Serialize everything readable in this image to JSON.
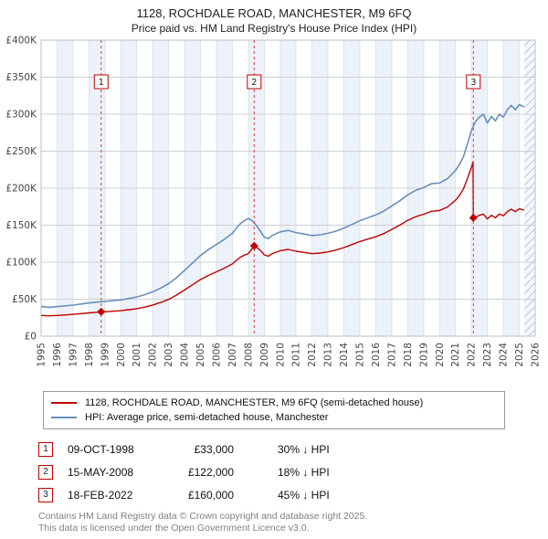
{
  "title": "1128, ROCHDALE ROAD, MANCHESTER, M9 6FQ",
  "subtitle": "Price paid vs. HM Land Registry's House Price Index (HPI)",
  "transactions": [
    {
      "num": "1",
      "date": "09-OCT-1998",
      "price": "£33,000",
      "hpi": "30% ↓ HPI"
    },
    {
      "num": "2",
      "date": "15-MAY-2008",
      "price": "£122,000",
      "hpi": "18% ↓ HPI"
    },
    {
      "num": "3",
      "date": "18-FEB-2022",
      "price": "£160,000",
      "hpi": "45% ↓ HPI"
    }
  ],
  "footer": {
    "line1": "Contains HM Land Registry data © Crown copyright and database right 2025.",
    "line2": "This data is licensed under the Open Government Licence v3.0."
  },
  "chart_data": {
    "type": "line",
    "title": "1128, ROCHDALE ROAD, MANCHESTER, M9 6FQ",
    "subtitle": "Price paid vs. HM Land Registry's House Price Index (HPI)",
    "xlabel": "",
    "ylabel": "",
    "xlim": [
      1995,
      2026
    ],
    "ylim": [
      0,
      400
    ],
    "y_units": "GBP thousands",
    "y_step": 50,
    "y_ticks": [
      "£0",
      "£50K",
      "£100K",
      "£150K",
      "£200K",
      "£250K",
      "£300K",
      "£350K",
      "£400K"
    ],
    "x_ticks": [
      1995,
      1996,
      1997,
      1998,
      1999,
      2000,
      2001,
      2002,
      2003,
      2004,
      2005,
      2006,
      2007,
      2008,
      2009,
      2010,
      2011,
      2012,
      2013,
      2014,
      2015,
      2016,
      2017,
      2018,
      2019,
      2020,
      2021,
      2022,
      2023,
      2024,
      2025,
      2026
    ],
    "grid": "on",
    "legend_position": "bottom",
    "hatch_start": 2025.33,
    "colors": {
      "band": "#edf2f9",
      "grid_v": "#dde3ec",
      "grid_h": "#d0d0d0",
      "frame": "#bfbfbf",
      "sale_line": "#cc4444",
      "hatch": "#b9c9de"
    },
    "series": [
      {
        "name": "price-paid",
        "label": "1128, ROCHDALE ROAD, MANCHESTER, M9 6FQ (semi-detached house)",
        "color": "#c00000",
        "width": 1.4,
        "x": [
          1995,
          1995.5,
          1996,
          1996.5,
          1997,
          1997.5,
          1998,
          1998.5,
          1998.77,
          1999,
          1999.5,
          2000,
          2000.5,
          2001,
          2001.5,
          2002,
          2002.5,
          2003,
          2003.5,
          2004,
          2004.5,
          2005,
          2005.5,
          2006,
          2006.5,
          2007,
          2007.25,
          2007.5,
          2007.75,
          2008,
          2008.37,
          2008.6,
          2008.85,
          2009,
          2009.25,
          2009.5,
          2010,
          2010.5,
          2011,
          2011.5,
          2012,
          2012.5,
          2013,
          2013.5,
          2014,
          2014.5,
          2015,
          2015.5,
          2016,
          2016.5,
          2017,
          2017.5,
          2018,
          2018.5,
          2019,
          2019.5,
          2020,
          2020.5,
          2021,
          2021.25,
          2021.5,
          2021.75,
          2022,
          2022.1,
          2022.12,
          2022.25,
          2022.5,
          2022.75,
          2023,
          2023.25,
          2023.5,
          2023.75,
          2024,
          2024.25,
          2024.5,
          2024.75,
          2025,
          2025.3
        ],
        "y_k": [
          28,
          27.5,
          28,
          28.7,
          29.5,
          30.5,
          31.5,
          32.3,
          33,
          33,
          33.7,
          34.4,
          35.8,
          37.2,
          39.3,
          42.1,
          45.6,
          49.8,
          55.5,
          62.5,
          69.5,
          76.5,
          82.1,
          87,
          92,
          97.6,
          102.5,
          106.7,
          109.5,
          111.6,
          122,
          119,
          114,
          109.9,
          108.2,
          111.5,
          115.6,
          117.3,
          114.8,
          113.2,
          111.5,
          112.3,
          114,
          116.4,
          119.7,
          123.8,
          127.9,
          131.2,
          134.5,
          138.6,
          144.3,
          150.1,
          156.6,
          161.5,
          164.8,
          168.9,
          169.7,
          174.7,
          183.7,
          190.2,
          199.3,
          213.2,
          228,
          235.3,
          160,
          160.6,
          163.3,
          165,
          158.4,
          163.4,
          160.1,
          165,
          162.8,
          168.3,
          171.6,
          168.3,
          172.1,
          170.5
        ]
      },
      {
        "name": "hpi",
        "label": "HPI: Average price, semi-detached house, Manchester",
        "color": "#6890ba",
        "width": 1.6,
        "x": [
          1995,
          1995.5,
          1996,
          1996.5,
          1997,
          1997.5,
          1998,
          1998.5,
          1999,
          1999.5,
          2000,
          2000.5,
          2001,
          2001.5,
          2002,
          2002.5,
          2003,
          2003.5,
          2004,
          2004.5,
          2005,
          2005.5,
          2006,
          2006.5,
          2007,
          2007.25,
          2007.5,
          2007.75,
          2008,
          2008.25,
          2008.5,
          2008.75,
          2009,
          2009.25,
          2009.5,
          2010,
          2010.5,
          2011,
          2011.5,
          2012,
          2012.5,
          2013,
          2013.5,
          2014,
          2014.5,
          2015,
          2015.5,
          2016,
          2016.5,
          2017,
          2017.5,
          2018,
          2018.5,
          2019,
          2019.5,
          2020,
          2020.5,
          2021,
          2021.25,
          2021.5,
          2021.75,
          2022,
          2022.25,
          2022.5,
          2022.75,
          2023,
          2023.25,
          2023.5,
          2023.75,
          2024,
          2024.25,
          2024.5,
          2024.75,
          2025,
          2025.3
        ],
        "y_k": [
          40,
          39,
          40,
          41,
          42,
          43.5,
          45,
          46,
          47,
          48,
          49,
          51,
          53,
          56,
          60,
          65,
          71,
          79,
          89,
          99,
          109,
          117,
          124,
          131,
          139,
          146,
          152,
          156,
          159,
          156,
          150,
          142,
          134,
          132,
          136,
          141,
          143,
          140,
          138,
          136,
          137,
          139,
          142,
          146,
          151,
          156,
          160,
          164,
          169,
          176,
          183,
          191,
          197,
          201,
          206,
          207,
          213,
          224,
          232,
          243,
          260,
          278,
          290,
          296,
          300,
          288,
          297,
          291,
          300,
          296,
          306,
          312,
          306,
          313,
          310
        ]
      }
    ],
    "sales": [
      {
        "label": "1",
        "x": 1998.77,
        "y_k": 33
      },
      {
        "label": "2",
        "x": 2008.37,
        "y_k": 122
      },
      {
        "label": "3",
        "x": 2022.12,
        "y_k": 160
      }
    ]
  }
}
